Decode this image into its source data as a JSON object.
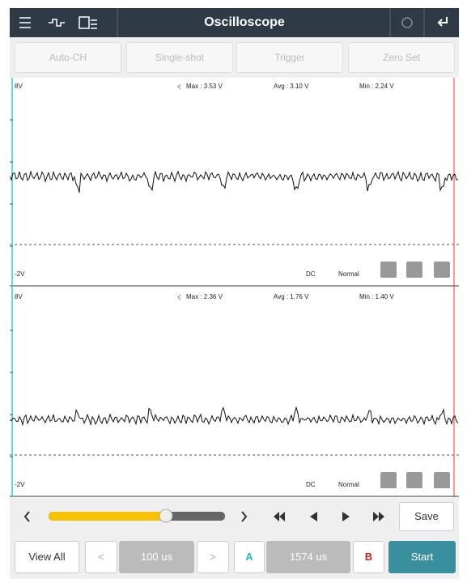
{
  "toolbar": {
    "title": "Oscilloscope"
  },
  "buttons": [
    "Auto-CH",
    "Single-shot",
    "Trigger",
    "Zero Set"
  ],
  "channels": [
    {
      "top": "8V",
      "bottom": "-2V",
      "max": "Max : 3.53 V",
      "avg": "Avg : 3.10 V",
      "min": "Min : 2.24 V",
      "coupling": "DC",
      "mode": "Normal"
    },
    {
      "top": "8V",
      "bottom": "-2V",
      "max": "Max : 2.36 V",
      "avg": "Avg : 1.76 V",
      "min": "Min : 1.40 V",
      "coupling": "DC",
      "mode": "Normal"
    }
  ],
  "controls": {
    "save": "Save"
  },
  "footer": {
    "view_all": "View All",
    "timebase": "100 us",
    "cursor_a": "A",
    "delta": "1574 us",
    "cursor_b": "B",
    "start": "Start"
  }
}
